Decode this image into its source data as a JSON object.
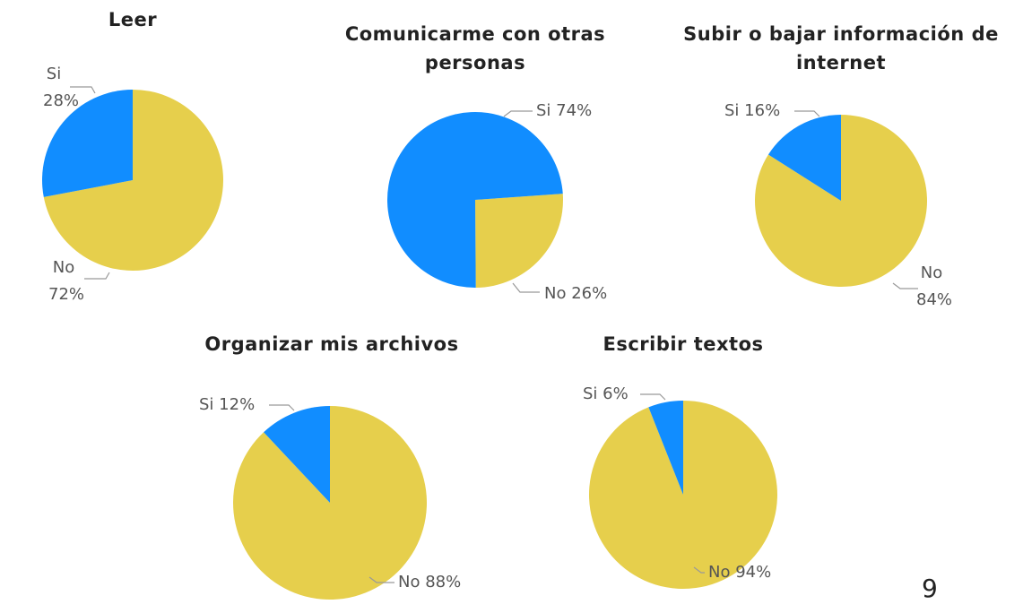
{
  "chart_data": [
    {
      "type": "pie",
      "title": "Leer",
      "categories": [
        "Si",
        "No"
      ],
      "values": [
        28,
        72
      ],
      "value_labels": [
        "28%",
        "72%"
      ],
      "colors": [
        "#118dff",
        "#e6cf4c"
      ]
    },
    {
      "type": "pie",
      "title": "Comunicarme con otras personas",
      "categories": [
        "Si",
        "No"
      ],
      "values": [
        74,
        26
      ],
      "value_labels": [
        "74%",
        "26%"
      ],
      "colors": [
        "#118dff",
        "#e6cf4c"
      ]
    },
    {
      "type": "pie",
      "title": "Subir o bajar información de internet",
      "categories": [
        "Si",
        "No"
      ],
      "values": [
        16,
        84
      ],
      "value_labels": [
        "16%",
        "84%"
      ],
      "colors": [
        "#118dff",
        "#e6cf4c"
      ]
    },
    {
      "type": "pie",
      "title": "Organizar mis archivos",
      "categories": [
        "Si",
        "No"
      ],
      "values": [
        12,
        88
      ],
      "value_labels": [
        "12%",
        "88%"
      ],
      "colors": [
        "#118dff",
        "#e6cf4c"
      ]
    },
    {
      "type": "pie",
      "title": "Escribir textos",
      "categories": [
        "Si",
        "No"
      ],
      "values": [
        6,
        94
      ],
      "value_labels": [
        "6%",
        "94%"
      ],
      "colors": [
        "#118dff",
        "#e6cf4c"
      ]
    }
  ],
  "page_number": "9"
}
